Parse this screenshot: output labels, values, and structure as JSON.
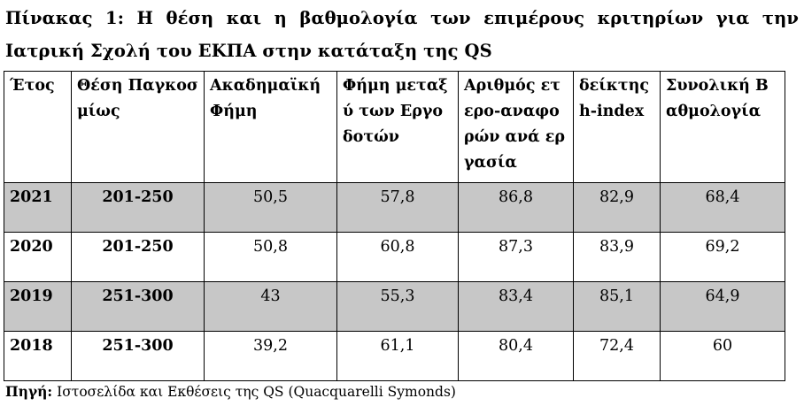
{
  "caption": "Πίνακας 1: Η θέση και η βαθμολογία των επιμέρους κριτηρίων για την Ιατρική Σχολή του ΕΚΠΑ στην κατάταξη της QS",
  "table": {
    "headers": [
      "Έτος",
      "Θέση Παγκοσμίως",
      "Ακαδημαϊκή Φήμη",
      "Φήμη μεταξύ των Εργοδοτών",
      "Αριθμός ετερο-αναφορών ανά εργασία",
      "δείκτης h-index",
      "Συνολική Βαθμολογία"
    ],
    "rows": [
      [
        "2021",
        "201-250",
        "50,5",
        "57,8",
        "86,8",
        "82,9",
        "68,4"
      ],
      [
        "2020",
        "201-250",
        "50,8",
        "60,8",
        "87,3",
        "83,9",
        "69,2"
      ],
      [
        "2019",
        "251-300",
        "43",
        "55,3",
        "83,4",
        "85,1",
        "64,9"
      ],
      [
        "2018",
        "251-300",
        "39,2",
        "61,1",
        "80,4",
        "72,4",
        "60"
      ]
    ]
  },
  "source": {
    "label": "Πηγή:",
    "text": " Ιστοσελίδα και  Εκθέσεις της QS (Quacquarelli Symonds)"
  }
}
